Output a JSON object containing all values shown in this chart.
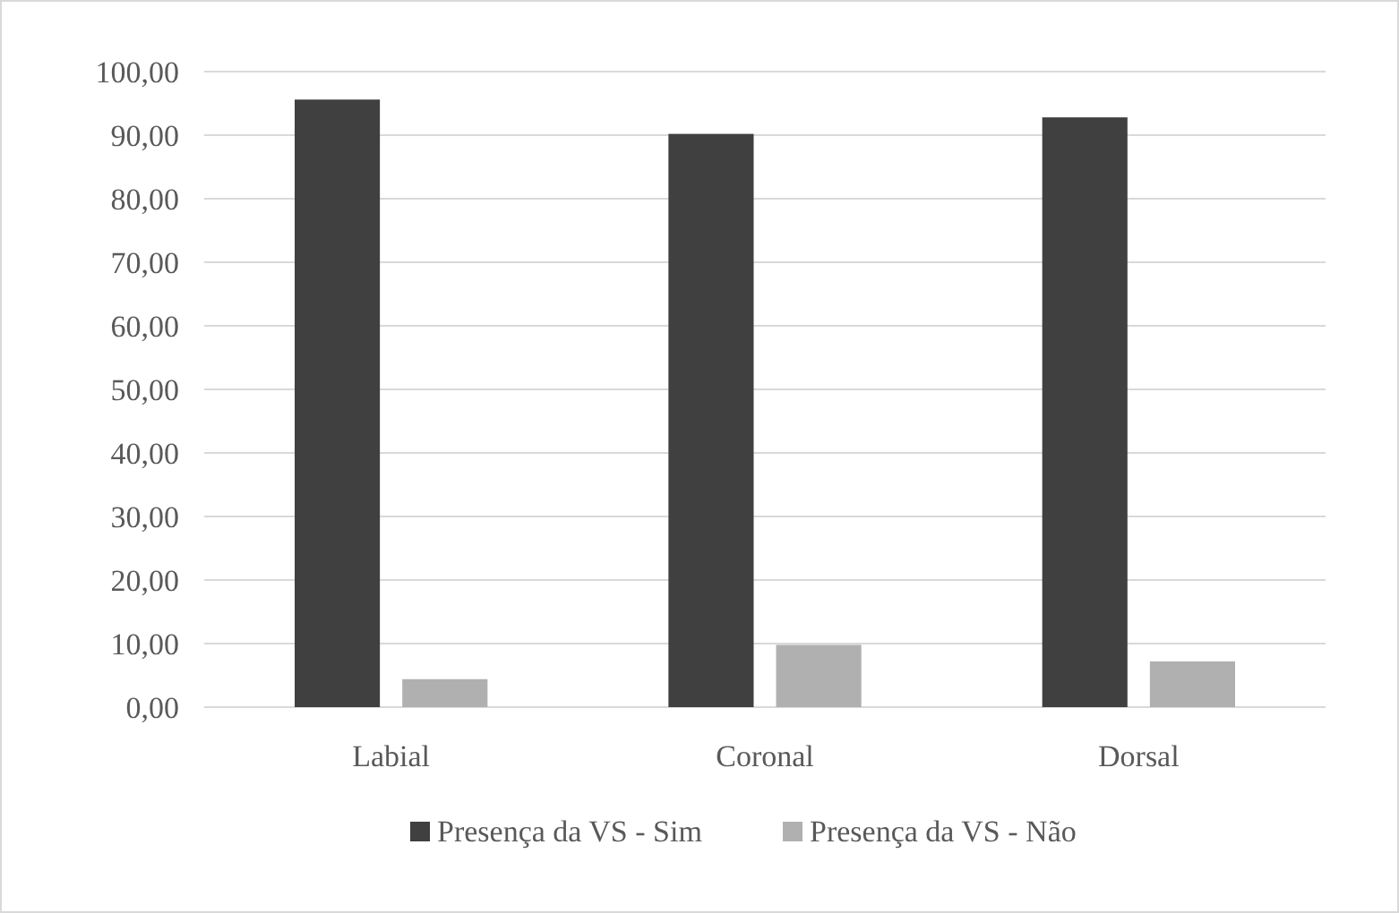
{
  "chart_data": {
    "type": "bar",
    "categories": [
      "Labial",
      "Coronal",
      "Dorsal"
    ],
    "series": [
      {
        "name": "Presença da VS - Sim",
        "color": "#404040",
        "values": [
          95.6,
          90.2,
          92.8
        ]
      },
      {
        "name": "Presença da VS - Não",
        "color": "#b0b0b0",
        "values": [
          4.4,
          9.8,
          7.2
        ]
      }
    ],
    "ylim": [
      0,
      100
    ],
    "yticks": [
      {
        "value": 0,
        "label": "0,00"
      },
      {
        "value": 10,
        "label": "10,00"
      },
      {
        "value": 20,
        "label": "20,00"
      },
      {
        "value": 30,
        "label": "30,00"
      },
      {
        "value": 40,
        "label": "40,00"
      },
      {
        "value": 50,
        "label": "50,00"
      },
      {
        "value": 60,
        "label": "60,00"
      },
      {
        "value": 70,
        "label": "70,00"
      },
      {
        "value": 80,
        "label": "80,00"
      },
      {
        "value": 90,
        "label": "90,00"
      },
      {
        "value": 100,
        "label": "100,00"
      }
    ],
    "grid": "y",
    "legend": "bottom"
  }
}
